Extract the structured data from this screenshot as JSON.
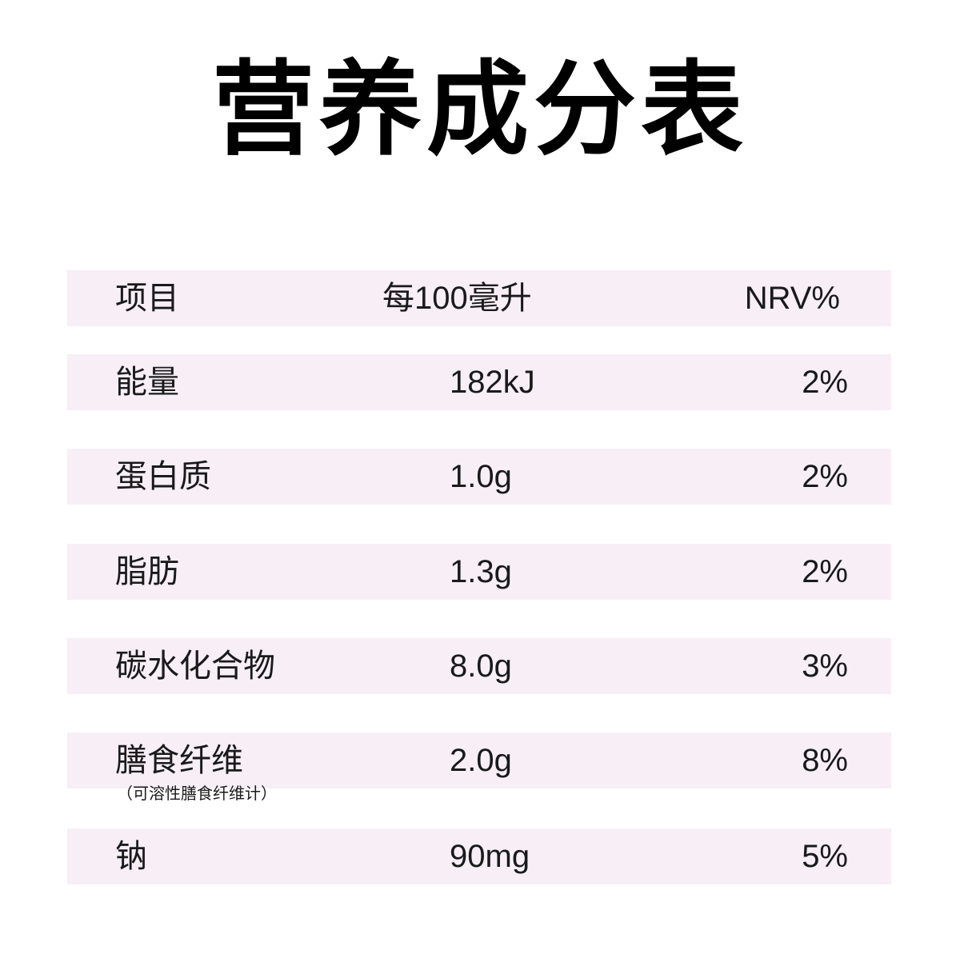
{
  "title": "营养成分表",
  "header": {
    "item": "项目",
    "per100": "每100毫升",
    "nrv": "NRV%"
  },
  "rows": [
    {
      "name": "能量",
      "amount": "182kJ",
      "nrv": "2%"
    },
    {
      "name": "蛋白质",
      "amount": "1.0g",
      "nrv": "2%"
    },
    {
      "name": "脂肪",
      "amount": "1.3g",
      "nrv": "2%"
    },
    {
      "name": "碳水化合物",
      "amount": "8.0g",
      "nrv": "3%"
    },
    {
      "name": "膳食纤维",
      "amount": "2.0g",
      "nrv": "8%"
    },
    {
      "name": "钠",
      "amount": "90mg",
      "nrv": "5%"
    }
  ],
  "fiber_note": "（可溶性膳食纤维计）",
  "colors": {
    "row_background": "#f7eef6",
    "text": "#1a1a1a"
  }
}
